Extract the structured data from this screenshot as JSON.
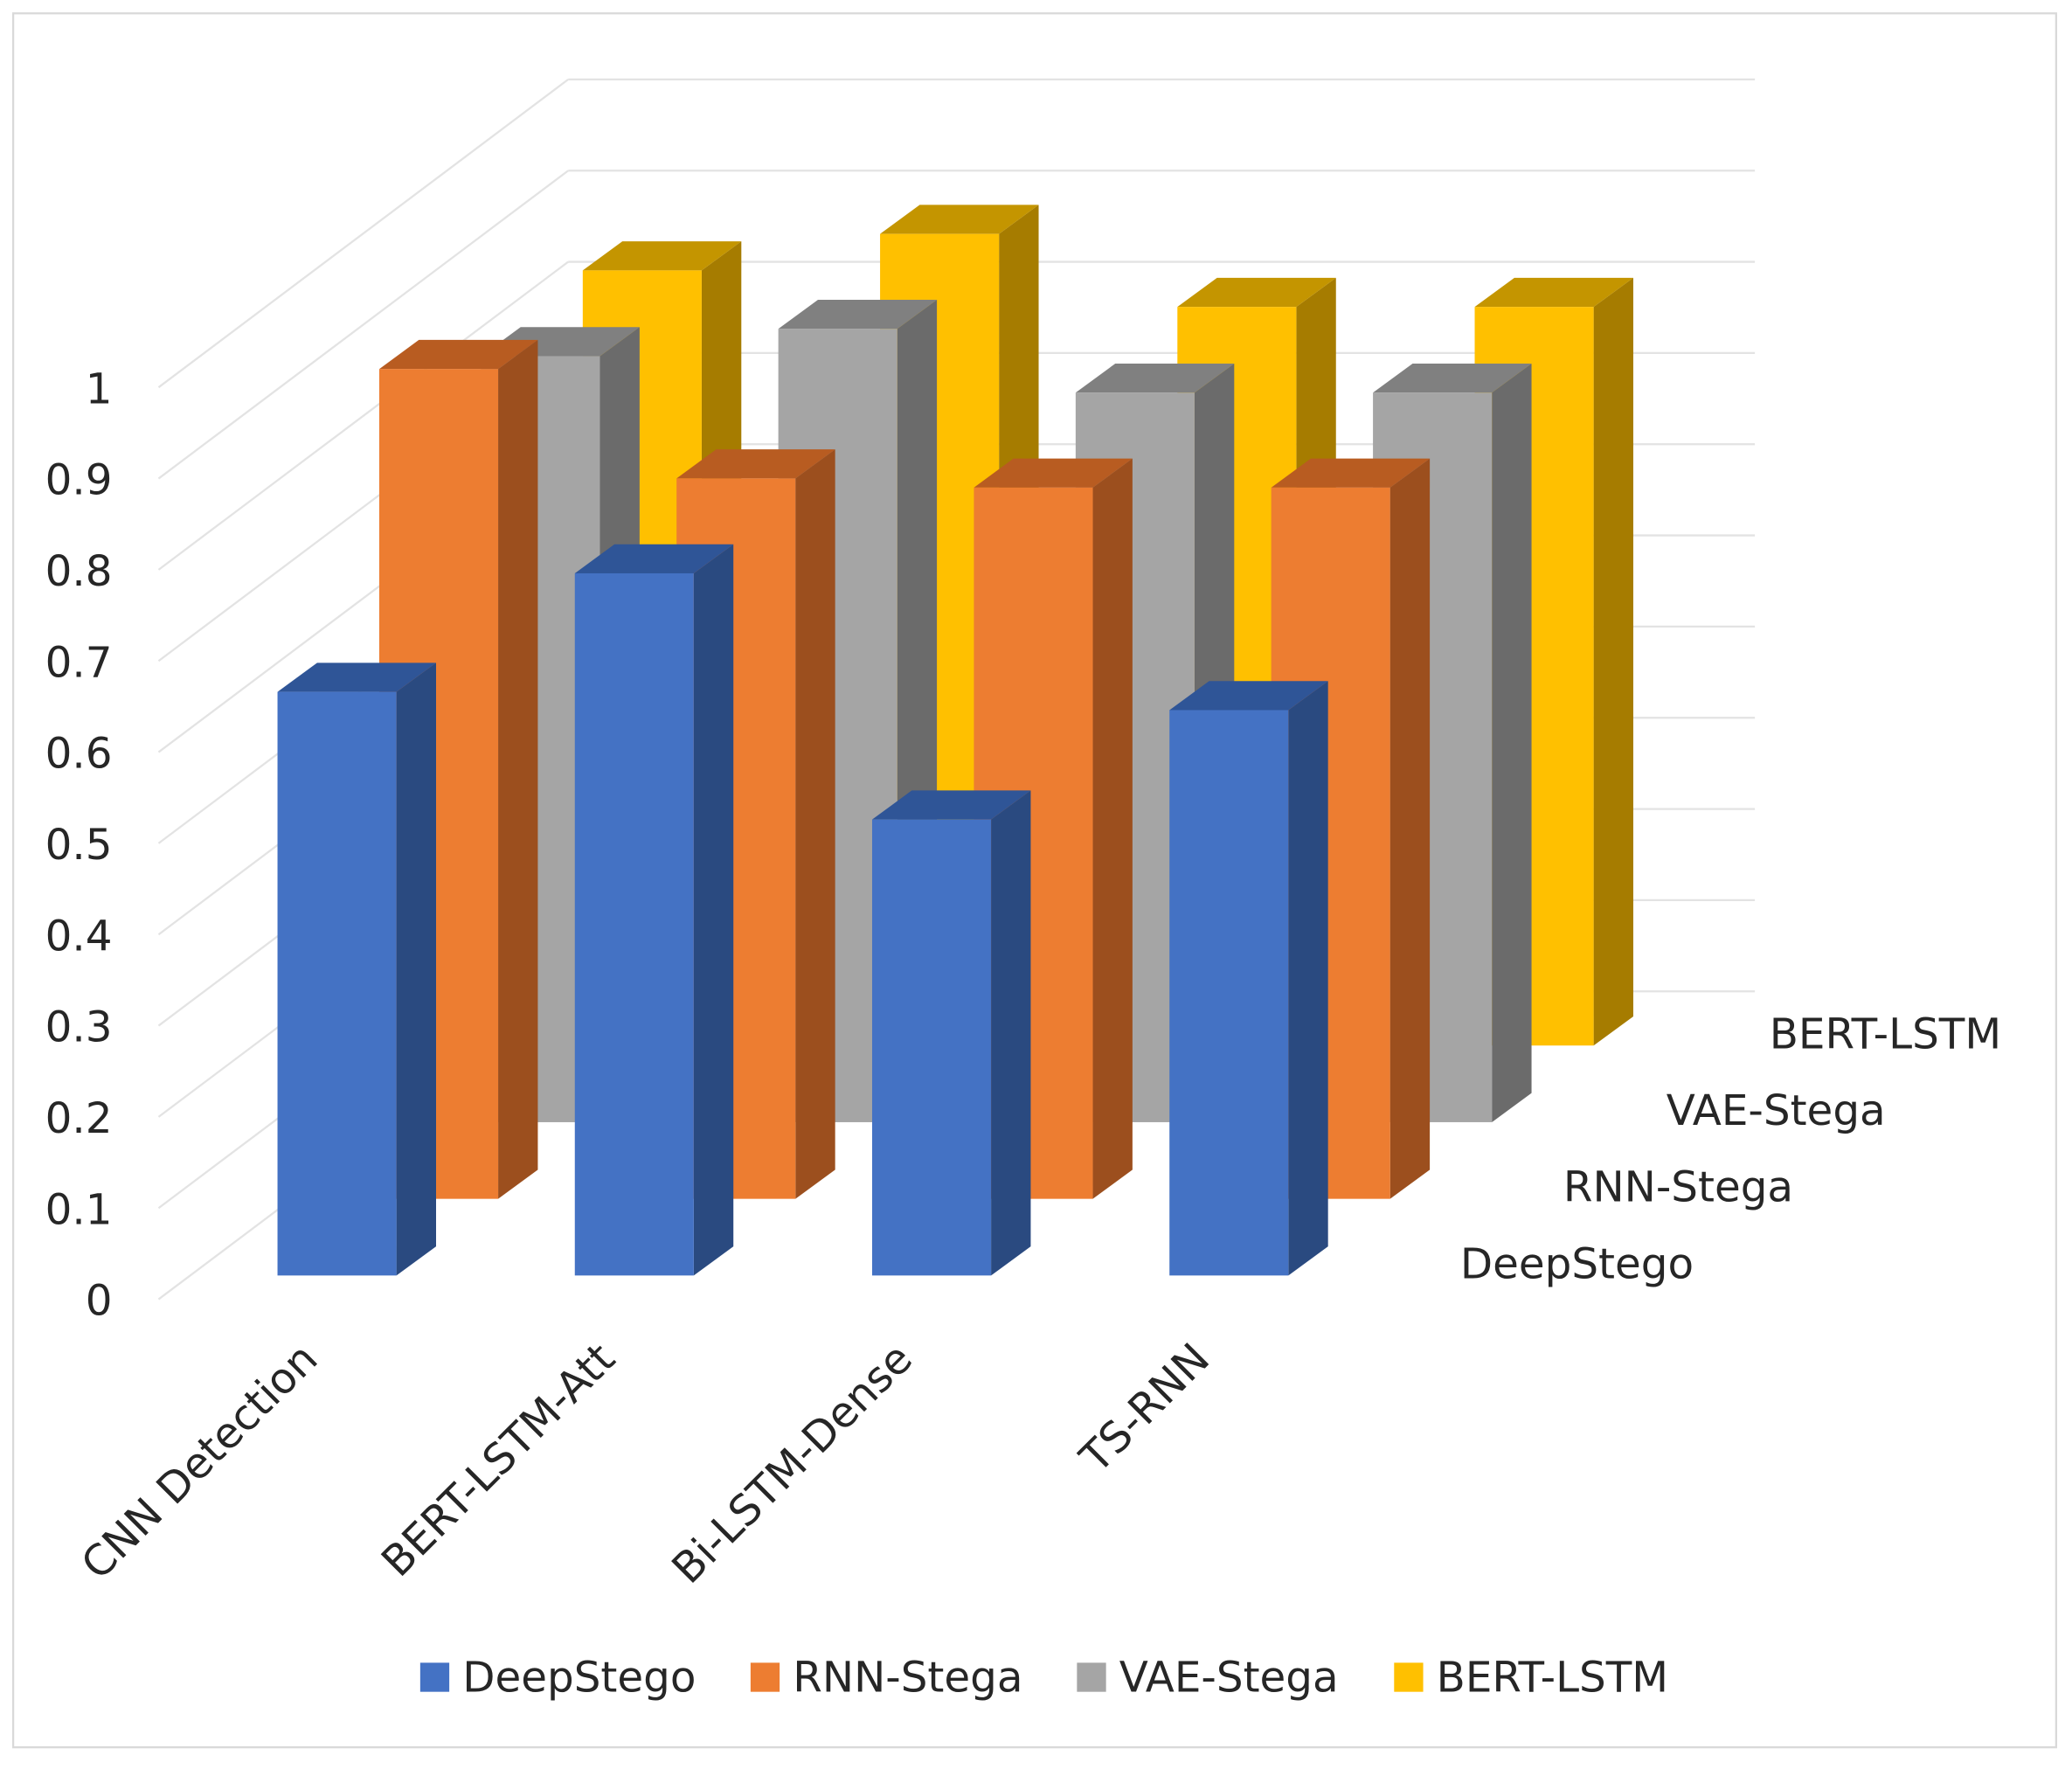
{
  "chart_data": {
    "type": "bar",
    "variant": "3d-column",
    "title": "",
    "xlabel": "",
    "ylabel": "",
    "categories": [
      "CNN Detection",
      "BERT-LSTM-Att",
      "Bi-LSTM-Dense",
      "TS-RNN"
    ],
    "series": [
      {
        "name": "DeepStego",
        "color": "#4472C4",
        "values": [
          0.64,
          0.77,
          0.5,
          0.62
        ]
      },
      {
        "name": "RNN-Stega",
        "color": "#ED7D31",
        "values": [
          0.91,
          0.79,
          0.78,
          0.78
        ]
      },
      {
        "name": "VAE-Stega",
        "color": "#A5A5A5",
        "values": [
          0.84,
          0.87,
          0.8,
          0.8
        ]
      },
      {
        "name": "BERT-LSTM",
        "color": "#FFC000",
        "values": [
          0.85,
          0.89,
          0.81,
          0.81
        ]
      }
    ],
    "ylim": [
      0,
      1
    ],
    "yticks": [
      "0",
      "0.1",
      "0.2",
      "0.3",
      "0.4",
      "0.5",
      "0.6",
      "0.7",
      "0.8",
      "0.9",
      "1"
    ],
    "grid": true,
    "legend": "bottom"
  }
}
